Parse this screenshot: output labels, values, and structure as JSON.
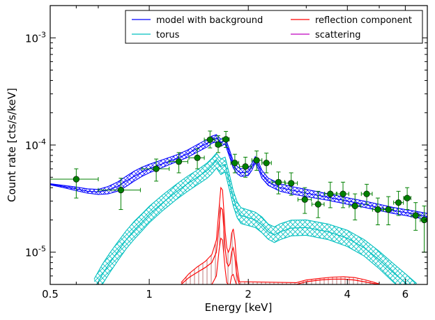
{
  "chart_data": {
    "type": "line",
    "xlabel": "Energy [keV]",
    "ylabel": "Count rate [cts/s/keV]",
    "x_scale": "log",
    "y_scale": "log",
    "xlim": [
      0.5,
      7.0
    ],
    "ylim": [
      5e-06,
      0.002
    ],
    "x_ticks": [
      {
        "value": 0.5,
        "label": "0.5"
      },
      {
        "value": 1,
        "label": "1"
      },
      {
        "value": 2,
        "label": "2"
      },
      {
        "value": 4,
        "label": "4"
      },
      {
        "value": 6,
        "label": "6"
      }
    ],
    "y_ticks": [
      {
        "value": 1e-05,
        "mantissa": "10",
        "exponent": "-5"
      },
      {
        "value": 0.0001,
        "mantissa": "10",
        "exponent": "-4"
      },
      {
        "value": 0.001,
        "mantissa": "10",
        "exponent": "-3"
      }
    ],
    "legend": {
      "position": "top-right",
      "entries": [
        {
          "label": "model with background",
          "color": "#0000ff"
        },
        {
          "label": "reflection component",
          "color": "#ff0000"
        },
        {
          "label": "torus",
          "color": "#00bfbf"
        },
        {
          "label": "scattering",
          "color": "#bf00bf"
        }
      ]
    },
    "data_points": {
      "color": "#008000",
      "points": [
        {
          "x": 0.6,
          "y": 4.8e-05,
          "xlo": 0.5,
          "xhi": 0.7,
          "ylo": 3.2e-05,
          "yhi": 6e-05
        },
        {
          "x": 0.82,
          "y": 3.8e-05,
          "xlo": 0.7,
          "xhi": 0.94,
          "ylo": 2.5e-05,
          "yhi": 4.9e-05
        },
        {
          "x": 1.05,
          "y": 6e-05,
          "xlo": 0.95,
          "xhi": 1.15,
          "ylo": 4.6e-05,
          "yhi": 7.4e-05
        },
        {
          "x": 1.23,
          "y": 7e-05,
          "xlo": 1.15,
          "xhi": 1.31,
          "ylo": 5.5e-05,
          "yhi": 8.5e-05
        },
        {
          "x": 1.4,
          "y": 7.6e-05,
          "xlo": 1.32,
          "xhi": 1.47,
          "ylo": 6e-05,
          "yhi": 9.2e-05
        },
        {
          "x": 1.53,
          "y": 0.000112,
          "xlo": 1.47,
          "xhi": 1.58,
          "ylo": 9.4e-05,
          "yhi": 0.000135
        },
        {
          "x": 1.62,
          "y": 0.000101,
          "xlo": 1.59,
          "xhi": 1.66,
          "ylo": 8.5e-05,
          "yhi": 0.000122
        },
        {
          "x": 1.71,
          "y": 0.000113,
          "xlo": 1.67,
          "xhi": 1.75,
          "ylo": 9.5e-05,
          "yhi": 0.000134
        },
        {
          "x": 1.82,
          "y": 6.8e-05,
          "xlo": 1.77,
          "xhi": 1.87,
          "ylo": 5.5e-05,
          "yhi": 8.2e-05
        },
        {
          "x": 1.96,
          "y": 6.3e-05,
          "xlo": 1.88,
          "xhi": 2.04,
          "ylo": 5e-05,
          "yhi": 7.7e-05
        },
        {
          "x": 2.12,
          "y": 7.2e-05,
          "xlo": 2.05,
          "xhi": 2.2,
          "ylo": 5.8e-05,
          "yhi": 8.8e-05
        },
        {
          "x": 2.27,
          "y": 6.8e-05,
          "xlo": 2.2,
          "xhi": 2.35,
          "ylo": 5.5e-05,
          "yhi": 8.4e-05
        },
        {
          "x": 2.47,
          "y": 4.5e-05,
          "xlo": 2.36,
          "xhi": 2.58,
          "ylo": 3.5e-05,
          "yhi": 5.6e-05
        },
        {
          "x": 2.7,
          "y": 4.4e-05,
          "xlo": 2.59,
          "xhi": 2.82,
          "ylo": 3.4e-05,
          "yhi": 5.5e-05
        },
        {
          "x": 2.97,
          "y": 3.1e-05,
          "xlo": 2.83,
          "xhi": 3.11,
          "ylo": 2.3e-05,
          "yhi": 4e-05
        },
        {
          "x": 3.26,
          "y": 2.8e-05,
          "xlo": 3.12,
          "xhi": 3.4,
          "ylo": 2.1e-05,
          "yhi": 3.7e-05
        },
        {
          "x": 3.55,
          "y": 3.5e-05,
          "xlo": 3.41,
          "xhi": 3.7,
          "ylo": 2.6e-05,
          "yhi": 4.5e-05
        },
        {
          "x": 3.88,
          "y": 3.5e-05,
          "xlo": 3.72,
          "xhi": 4.04,
          "ylo": 2.6e-05,
          "yhi": 4.5e-05
        },
        {
          "x": 4.22,
          "y": 2.7e-05,
          "xlo": 4.05,
          "xhi": 4.4,
          "ylo": 2e-05,
          "yhi": 3.5e-05
        },
        {
          "x": 4.58,
          "y": 3.5e-05,
          "xlo": 4.41,
          "xhi": 4.76,
          "ylo": 2.8e-05,
          "yhi": 4.3e-05
        },
        {
          "x": 4.95,
          "y": 2.5e-05,
          "xlo": 4.77,
          "xhi": 5.14,
          "ylo": 1.8e-05,
          "yhi": 3.2e-05
        },
        {
          "x": 5.33,
          "y": 2.5e-05,
          "xlo": 5.15,
          "xhi": 5.52,
          "ylo": 1.8e-05,
          "yhi": 3.3e-05
        },
        {
          "x": 5.72,
          "y": 2.9e-05,
          "xlo": 5.53,
          "xhi": 5.92,
          "ylo": 2.2e-05,
          "yhi": 3.7e-05
        },
        {
          "x": 6.08,
          "y": 3.2e-05,
          "xlo": 5.93,
          "xhi": 6.24,
          "ylo": 2.5e-05,
          "yhi": 4e-05
        },
        {
          "x": 6.45,
          "y": 2.2e-05,
          "xlo": 6.25,
          "xhi": 6.65,
          "ylo": 1.6e-05,
          "yhi": 2.9e-05
        },
        {
          "x": 6.85,
          "y": 2e-05,
          "xlo": 6.66,
          "xhi": 7.0,
          "ylo": 1e-05,
          "yhi": 2.7e-05
        }
      ]
    },
    "series": [
      {
        "name": "model with background",
        "color": "#0000ff",
        "band": true,
        "x": [
          0.5,
          0.55,
          0.6,
          0.65,
          0.7,
          0.75,
          0.8,
          0.85,
          0.9,
          0.95,
          1.0,
          1.1,
          1.2,
          1.3,
          1.4,
          1.5,
          1.55,
          1.6,
          1.65,
          1.7,
          1.75,
          1.8,
          1.85,
          1.9,
          2.0,
          2.05,
          2.1,
          2.15,
          2.2,
          2.3,
          2.5,
          2.7,
          3.0,
          3.5,
          4.0,
          4.5,
          5.0,
          5.5,
          6.0,
          6.5,
          7.0
        ],
        "y": [
          4.3e-05,
          4.1e-05,
          3.9e-05,
          3.7e-05,
          3.65e-05,
          3.8e-05,
          4.1e-05,
          4.6e-05,
          5.1e-05,
          5.6e-05,
          6e-05,
          6.7e-05,
          7.4e-05,
          8.2e-05,
          9.3e-05,
          0.000104,
          0.000112,
          0.000116,
          0.000105,
          0.00011,
          8.5e-05,
          6.6e-05,
          5.8e-05,
          5.5e-05,
          5.6e-05,
          6.2e-05,
          7.3e-05,
          6.4e-05,
          5.3e-05,
          4.5e-05,
          4e-05,
          3.8e-05,
          3.55e-05,
          3.25e-05,
          3e-05,
          2.8e-05,
          2.6e-05,
          2.45e-05,
          2.35e-05,
          2.25e-05,
          2.15e-05
        ],
        "ylo": [
          4.25e-05,
          4e-05,
          3.75e-05,
          3.55e-05,
          3.45e-05,
          3.5e-05,
          3.7e-05,
          4.1e-05,
          4.6e-05,
          5.1e-05,
          5.5e-05,
          6.2e-05,
          6.9e-05,
          7.6e-05,
          8.6e-05,
          9.6e-05,
          0.000104,
          0.000107,
          9.8e-05,
          0.000102,
          7.9e-05,
          6.1e-05,
          5.4e-05,
          5.1e-05,
          5.2e-05,
          5.8e-05,
          6.8e-05,
          5.9e-05,
          4.9e-05,
          4.2e-05,
          3.7e-05,
          3.5e-05,
          3.3e-05,
          3.05e-05,
          2.8e-05,
          2.62e-05,
          2.45e-05,
          2.3e-05,
          2.2e-05,
          2.1e-05,
          2.02e-05
        ],
        "yhi": [
          4.35e-05,
          4.2e-05,
          4.05e-05,
          3.9e-05,
          3.85e-05,
          4.1e-05,
          4.5e-05,
          5.1e-05,
          5.7e-05,
          6.2e-05,
          6.6e-05,
          7.3e-05,
          8e-05,
          8.9e-05,
          0.000101,
          0.000113,
          0.000121,
          0.000125,
          0.000113,
          0.000118,
          9.2e-05,
          7.1e-05,
          6.3e-05,
          6e-05,
          6.1e-05,
          6.7e-05,
          7.8e-05,
          6.9e-05,
          5.8e-05,
          4.9e-05,
          4.35e-05,
          4.1e-05,
          3.85e-05,
          3.5e-05,
          3.22e-05,
          3e-05,
          2.8e-05,
          2.62e-05,
          2.5e-05,
          2.4e-05,
          2.3e-05
        ]
      },
      {
        "name": "torus",
        "color": "#00bfbf",
        "band": true,
        "x": [
          0.68,
          0.72,
          0.76,
          0.8,
          0.85,
          0.9,
          0.95,
          1.0,
          1.1,
          1.2,
          1.3,
          1.4,
          1.5,
          1.55,
          1.6,
          1.65,
          1.7,
          1.75,
          1.8,
          1.85,
          1.9,
          2.0,
          2.1,
          2.2,
          2.3,
          2.4,
          2.5,
          2.7,
          3.0,
          3.5,
          4.0,
          4.5,
          5.0,
          5.5,
          6.0,
          6.5
        ],
        "y": [
          4.5e-06,
          6.2e-06,
          8e-06,
          1e-05,
          1.3e-05,
          1.6e-05,
          1.9e-05,
          2.25e-05,
          2.9e-05,
          3.6e-05,
          4.3e-05,
          5e-05,
          5.8e-05,
          6.4e-05,
          7.2e-05,
          6.3e-05,
          6.6e-05,
          4.6e-05,
          3.2e-05,
          2.5e-05,
          2.2e-05,
          2.1e-05,
          2e-05,
          1.8e-05,
          1.55e-05,
          1.45e-05,
          1.55e-05,
          1.68e-05,
          1.7e-05,
          1.55e-05,
          1.35e-05,
          1.1e-05,
          8.5e-06,
          6.5e-06,
          5.2e-06,
          4.2e-06
        ],
        "ylo": [
          3.6e-06,
          5e-06,
          6.5e-06,
          8.2e-06,
          1.07e-05,
          1.32e-05,
          1.58e-05,
          1.88e-05,
          2.45e-05,
          3.05e-05,
          3.65e-05,
          4.25e-05,
          4.9e-05,
          5.4e-05,
          6.1e-05,
          5.3e-05,
          5.6e-05,
          3.9e-05,
          2.7e-05,
          2.1e-05,
          1.85e-05,
          1.77e-05,
          1.7e-05,
          1.52e-05,
          1.32e-05,
          1.23e-05,
          1.31e-05,
          1.42e-05,
          1.44e-05,
          1.31e-05,
          1.13e-05,
          9.2e-06,
          7e-06,
          5.3e-06,
          4.2e-06,
          3.4e-06
        ],
        "yhi": [
          5.6e-06,
          7.7e-06,
          9.9e-06,
          1.23e-05,
          1.58e-05,
          1.94e-05,
          2.28e-05,
          2.68e-05,
          3.43e-05,
          4.23e-05,
          5.05e-05,
          5.85e-05,
          6.8e-05,
          7.5e-05,
          8.4e-05,
          7.4e-05,
          7.7e-05,
          5.4e-05,
          3.75e-05,
          2.95e-05,
          2.6e-05,
          2.48e-05,
          2.36e-05,
          2.13e-05,
          1.83e-05,
          1.72e-05,
          1.84e-05,
          1.99e-05,
          2e-05,
          1.83e-05,
          1.6e-05,
          1.31e-05,
          1.02e-05,
          7.9e-06,
          6.3e-06,
          5.1e-06
        ]
      },
      {
        "name": "reflection component",
        "color": "#ff0000",
        "band": true,
        "x": [
          1.25,
          1.32,
          1.4,
          1.48,
          1.55,
          1.6,
          1.63,
          1.65,
          1.67,
          1.7,
          1.72,
          1.74,
          1.76,
          1.78,
          1.8,
          1.82,
          1.84,
          1.86,
          1.88,
          2.8,
          3.0,
          3.3,
          3.6,
          3.9,
          4.2,
          4.5,
          4.8,
          5.0
        ],
        "y": [
          5e-06,
          5.8e-06,
          6.5e-06,
          7.2e-06,
          8e-06,
          1e-05,
          1.8e-05,
          2.6e-05,
          2.5e-05,
          1.1e-05,
          8e-06,
          7.4e-06,
          7.8e-06,
          1e-05,
          1.1e-05,
          9e-06,
          6.5e-06,
          5.5e-06,
          5e-06,
          5e-06,
          5.3e-06,
          5.5e-06,
          5.6e-06,
          5.6e-06,
          5.5e-06,
          5.3e-06,
          5.1e-06,
          5e-06
        ],
        "ylo": [
          5e-06,
          5e-06,
          5e-06,
          5e-06,
          5e-06,
          6e-06,
          1.05e-05,
          1.35e-05,
          1.3e-05,
          7e-06,
          5.2e-06,
          5e-06,
          5e-06,
          6e-06,
          6.2e-06,
          5.5e-06,
          5e-06,
          5e-06,
          5e-06,
          5e-06,
          5e-06,
          5e-06,
          5e-06,
          5e-06,
          5e-06,
          5e-06,
          5e-06,
          5e-06
        ],
        "yhi": [
          5.2e-06,
          6.3e-06,
          7.3e-06,
          8.2e-06,
          9.5e-06,
          1.3e-05,
          2.6e-05,
          4e-05,
          3.8e-05,
          1.6e-05,
          1.1e-05,
          1e-05,
          1.1e-05,
          1.5e-05,
          1.65e-05,
          1.3e-05,
          8.5e-06,
          6.5e-06,
          5.3e-06,
          5.2e-06,
          5.5e-06,
          5.7e-06,
          5.85e-06,
          5.9e-06,
          5.8e-06,
          5.55e-06,
          5.25e-06,
          5.05e-06
        ]
      }
    ]
  }
}
